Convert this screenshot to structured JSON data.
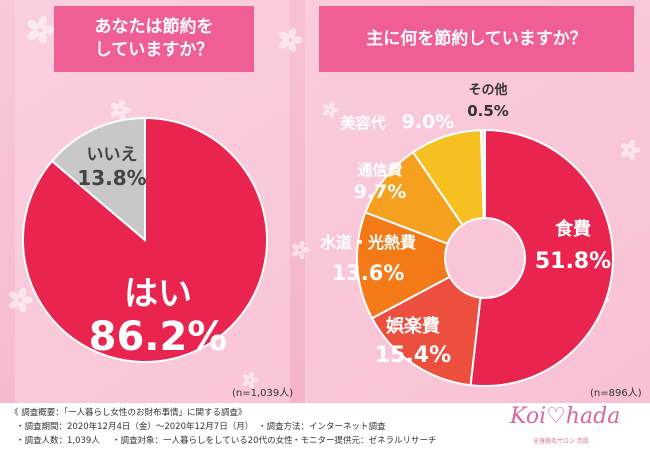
{
  "q1": {
    "title_line1": "あなたは節約を",
    "title_line2": "していますか？",
    "sample": "(n=1,039人)"
  },
  "q2": {
    "title": "主に何を節約していますか？",
    "sample": "(n=896人)"
  },
  "chart_data": [
    {
      "type": "pie",
      "title": "あなたは節約をしていますか？",
      "series": [
        {
          "label": "はい",
          "value": 86.2,
          "display": "86.2%",
          "color": "#e8244f"
        },
        {
          "label": "いいえ",
          "value": 13.8,
          "display": "13.8%",
          "color": "#c8c8c8"
        }
      ]
    },
    {
      "type": "pie",
      "title": "主に何を節約していますか？",
      "series": [
        {
          "label": "食費",
          "value": 51.8,
          "display": "51.8%",
          "color": "#e8244f"
        },
        {
          "label": "娯楽費",
          "value": 15.4,
          "display": "15.4%",
          "color": "#ec4f3e"
        },
        {
          "label": "水道・光熱費",
          "value": 13.6,
          "display": "13.6%",
          "color": "#f47a18"
        },
        {
          "label": "通信費",
          "value": 9.7,
          "display": "9.7%",
          "color": "#f6a020"
        },
        {
          "label": "美容代",
          "value": 9.0,
          "display": "9.0%",
          "color": "#f6c020"
        },
        {
          "label": "その他",
          "value": 0.5,
          "display": "0.5%",
          "color": "#ededed"
        }
      ]
    }
  ],
  "footer": {
    "line1": "《 調査概要：「一人暮らし女性のお財布事情」に関する調査》",
    "period": "・調査期間：2020年12月4日（金）～2020年12月7日（月）",
    "method": "・調査方法：インターネット調査",
    "count": "・調査人数：1,039人",
    "target": "・調査対象：一人暮らしをしている20代の女性",
    "provider": "・モニター提供元：ゼネラルリサーチ"
  }
}
